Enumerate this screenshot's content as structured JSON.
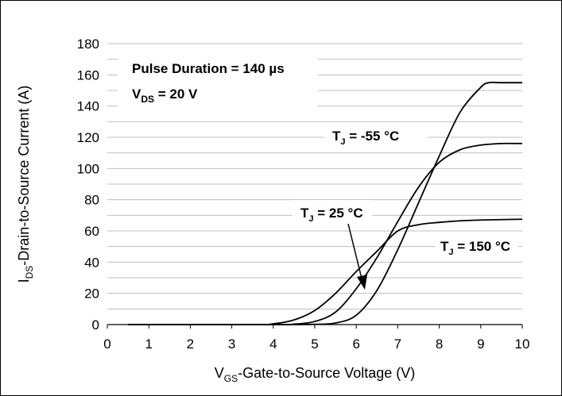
{
  "chart_data": {
    "type": "line",
    "title": "",
    "xlabel": "VGS-Gate-to-Source Voltage (V)",
    "xlabel_main": "V",
    "xlabel_sub": "GS",
    "xlabel_rest": "-Gate-to-Source Voltage (V)",
    "ylabel": "IDS-Drain-to-Source Current (A)",
    "ylabel_main": "I",
    "ylabel_sub": "DS",
    "ylabel_rest": "-Drain-to-Source Current (A)",
    "xlim": [
      0,
      10
    ],
    "ylim": [
      0,
      180
    ],
    "x_ticks": [
      "0",
      "1",
      "2",
      "3",
      "4",
      "5",
      "6",
      "7",
      "8",
      "9",
      "10"
    ],
    "y_ticks": [
      "0",
      "20",
      "40",
      "60",
      "80",
      "100",
      "120",
      "140",
      "160",
      "180"
    ],
    "grid": "horizontal",
    "annotations": {
      "pulse_duration": "Pulse Duration = 140 µs",
      "vds_main": "V",
      "vds_sub": "DS",
      "vds_rest": " = 20 V"
    },
    "series": [
      {
        "name": "TJ = -55 °C",
        "label_main": "T",
        "label_sub": "J",
        "label_rest": " = -55 °C",
        "x": [
          0.5,
          4.0,
          5.0,
          5.5,
          6.0,
          6.5,
          7.0,
          7.5,
          8.0,
          8.5,
          9.0,
          9.2,
          9.5,
          10.0
        ],
        "y": [
          0,
          0,
          0.2,
          1,
          6,
          22,
          48,
          78,
          108,
          136,
          152,
          155,
          155,
          155
        ]
      },
      {
        "name": "TJ = 25 °C",
        "label_main": "T",
        "label_sub": "J",
        "label_rest": " = 25 °C",
        "x": [
          0.5,
          4.0,
          4.5,
          5.0,
          5.5,
          6.0,
          6.5,
          7.0,
          7.5,
          8.0,
          8.5,
          9.0,
          9.5,
          10.0
        ],
        "y": [
          0,
          0,
          0.3,
          2,
          8,
          23,
          43,
          66,
          88,
          104,
          112,
          115,
          116,
          116
        ]
      },
      {
        "name": "TJ = 150 °C",
        "label_main": "T",
        "label_sub": "J",
        "label_rest": " = 150 °C",
        "x": [
          0.5,
          3.5,
          4.0,
          4.5,
          5.0,
          5.5,
          6.0,
          6.5,
          7.0,
          7.5,
          8.0,
          8.5,
          9.0,
          10.0
        ],
        "y": [
          0,
          0,
          0.5,
          3,
          9,
          20,
          34,
          47,
          60,
          64,
          65.5,
          66.5,
          67,
          67.5
        ]
      }
    ]
  }
}
